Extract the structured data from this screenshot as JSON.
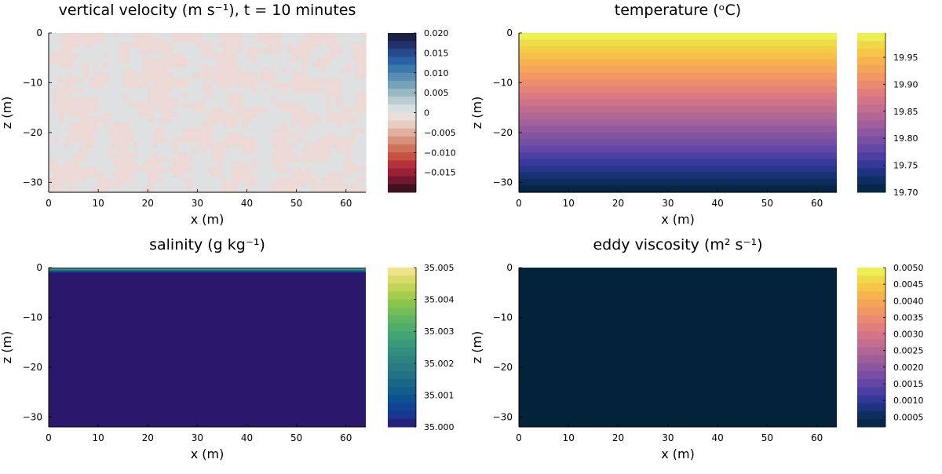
{
  "chart_data": [
    {
      "type": "heatmap",
      "title": "vertical velocity (m s⁻¹), t = 10 minutes",
      "xlabel": "x (m)",
      "ylabel": "z (m)",
      "xlim": [
        0,
        64
      ],
      "ylim": [
        -32,
        0
      ],
      "xticks": [
        0,
        10,
        20,
        30,
        40,
        50,
        60
      ],
      "yticks": [
        0,
        -10,
        -20,
        -30
      ],
      "field": "near-zero noise, mottled between about -0.001 and 0.002",
      "value_range": [
        -0.001,
        0.0015
      ],
      "colorbar": {
        "colormap": "balance",
        "range": [
          -0.02,
          0.02
        ],
        "ticks": [
          0.02,
          0.015,
          0.01,
          0.005,
          0,
          -0.005,
          -0.01,
          -0.015
        ],
        "tick_labels": [
          "0.020",
          "0.015",
          "0.010",
          "0.005",
          "0",
          "−0.005",
          "−0.010",
          "−0.015"
        ],
        "colors": [
          "#241119",
          "#5a1428",
          "#8a1a32",
          "#a8263a",
          "#bf3f3a",
          "#cc6148",
          "#d4826a",
          "#dca08c",
          "#e4beb0",
          "#ecd8d2",
          "#e6e6e6",
          "#ccd6da",
          "#a9c2cc",
          "#86adbf",
          "#6698b5",
          "#4883ae",
          "#2e6ca8",
          "#2857a0",
          "#263d7e",
          "#1f2657",
          "#161933"
        ]
      }
    },
    {
      "type": "heatmap",
      "title": "temperature (ᵒC)",
      "xlabel": "x (m)",
      "ylabel": "z (m)",
      "xlim": [
        0,
        64
      ],
      "ylim": [
        -32,
        0
      ],
      "xticks": [
        0,
        10,
        20,
        30,
        40,
        50,
        60
      ],
      "yticks": [
        0,
        -10,
        -20,
        -30
      ],
      "field": "horizontally uniform, increasing linearly with height",
      "value_range": [
        19.7,
        19.995
      ],
      "colorbar": {
        "colormap": "thermal",
        "range": [
          19.7,
          19.995
        ],
        "ticks": [
          19.95,
          19.9,
          19.85,
          19.8,
          19.75,
          19.7
        ],
        "tick_labels": [
          "19.95",
          "19.90",
          "19.85",
          "19.80",
          "19.75",
          "19.70"
        ],
        "colors": [
          "#03233b",
          "#0d2c5a",
          "#1e3380",
          "#3a3a9e",
          "#5a43a5",
          "#744da4",
          "#8c579f",
          "#a36199",
          "#ba6a93",
          "#d0738a",
          "#e07e7d",
          "#ec8d6d",
          "#f49e5e",
          "#f7b050",
          "#f5c647",
          "#f0dc49",
          "#e8fa5b"
        ]
      }
    },
    {
      "type": "heatmap",
      "title": "salinity (g kg⁻¹)",
      "xlabel": "x (m)",
      "ylabel": "z (m)",
      "xlim": [
        0,
        64
      ],
      "ylim": [
        -32,
        0
      ],
      "xticks": [
        0,
        10,
        20,
        30,
        40,
        50,
        60
      ],
      "yticks": [
        0,
        -10,
        -20,
        -30
      ],
      "field": "uniform 35.000 except a thin saltier layer at the surface",
      "value_range": [
        35.0,
        35.005
      ],
      "colorbar": {
        "colormap": "haline",
        "range": [
          35.0,
          35.005
        ],
        "ticks": [
          35.005,
          35.004,
          35.003,
          35.002,
          35.001,
          35.0
        ],
        "tick_labels": [
          "35.005",
          "35.004",
          "35.003",
          "35.002",
          "35.001",
          "35.000"
        ],
        "colors": [
          "#2a186c",
          "#1f2f8a",
          "#124096",
          "#0e4f91",
          "#125d8a",
          "#1b6887",
          "#237384",
          "#2a7e82",
          "#30897f",
          "#36947b",
          "#3ea075",
          "#4aaa6d",
          "#5cb363",
          "#73bd58",
          "#8dc54e",
          "#aacd4c",
          "#c7d65a",
          "#e2df72",
          "#fde6a0"
        ]
      }
    },
    {
      "type": "heatmap",
      "title": "eddy viscosity (m² s⁻¹)",
      "xlabel": "x (m)",
      "ylabel": "z (m)",
      "xlim": [
        0,
        64
      ],
      "ylim": [
        -32,
        0
      ],
      "xticks": [
        0,
        10,
        20,
        30,
        40,
        50,
        60
      ],
      "yticks": [
        0,
        -10,
        -20,
        -30
      ],
      "field": "uniform, near zero everywhere",
      "value_range": [
        0,
        0
      ],
      "colorbar": {
        "colormap": "thermal",
        "range": [
          0.0002,
          0.005
        ],
        "ticks": [
          0.005,
          0.0045,
          0.004,
          0.0035,
          0.003,
          0.0025,
          0.002,
          0.0015,
          0.001,
          0.0005
        ],
        "tick_labels": [
          "0.0050",
          "0.0045",
          "0.0040",
          "0.0035",
          "0.0030",
          "0.0025",
          "0.0020",
          "0.0015",
          "0.0010",
          "0.0005"
        ],
        "colors": [
          "#03233b",
          "#0d2c5a",
          "#1e3380",
          "#3a3a9e",
          "#5a43a5",
          "#744da4",
          "#8c579f",
          "#a36199",
          "#ba6a93",
          "#d0738a",
          "#e07e7d",
          "#ec8d6d",
          "#f49e5e",
          "#f7b050",
          "#f5c647",
          "#f0dc49",
          "#e8fa5b"
        ]
      }
    }
  ]
}
